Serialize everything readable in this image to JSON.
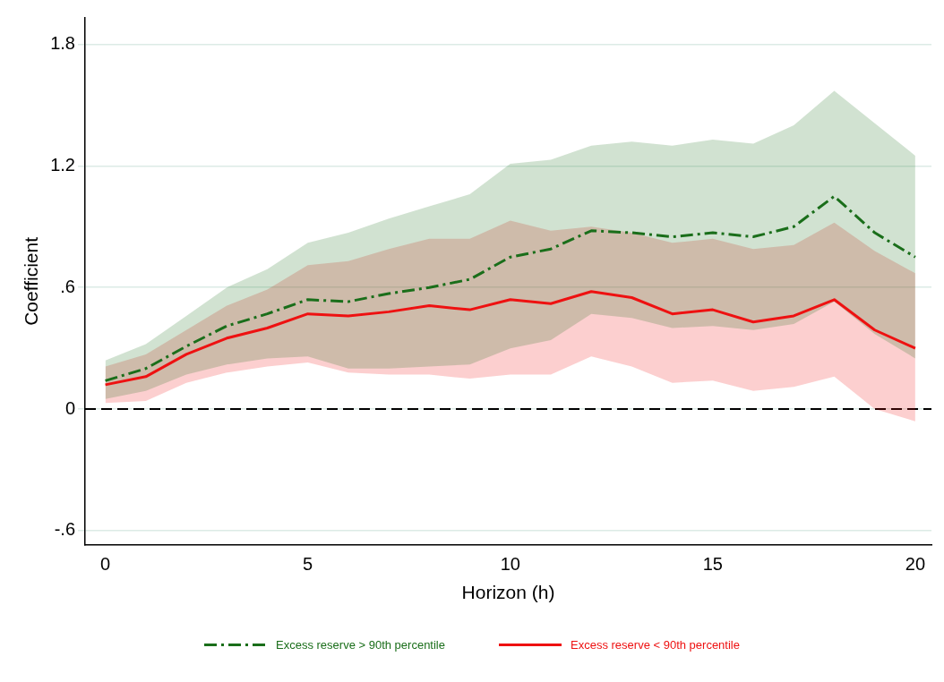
{
  "chart_data": {
    "type": "line",
    "xlabel": "Horizon (h)",
    "ylabel": "Coefficient",
    "x": [
      0,
      1,
      2,
      3,
      4,
      5,
      6,
      7,
      8,
      9,
      10,
      11,
      12,
      13,
      14,
      15,
      16,
      17,
      18,
      19,
      20
    ],
    "series": [
      {
        "name": "Excess reserve > 90th percentile",
        "color": "#1a6e1a",
        "line_style": "dashed",
        "values": [
          0.14,
          0.2,
          0.31,
          0.41,
          0.47,
          0.54,
          0.53,
          0.57,
          0.6,
          0.64,
          0.75,
          0.79,
          0.88,
          0.87,
          0.85,
          0.87,
          0.85,
          0.9,
          1.05,
          0.87,
          0.75
        ],
        "upper": [
          0.24,
          0.32,
          0.46,
          0.6,
          0.69,
          0.82,
          0.87,
          0.94,
          1.0,
          1.06,
          1.21,
          1.23,
          1.3,
          1.32,
          1.3,
          1.33,
          1.31,
          1.4,
          1.57,
          1.41,
          1.25
        ],
        "lower": [
          0.05,
          0.09,
          0.17,
          0.22,
          0.25,
          0.26,
          0.2,
          0.2,
          0.21,
          0.22,
          0.3,
          0.34,
          0.47,
          0.45,
          0.4,
          0.41,
          0.39,
          0.42,
          0.53,
          0.37,
          0.25
        ]
      },
      {
        "name": "Excess reserve < 90th percentile",
        "color": "#ee1111",
        "line_style": "solid",
        "values": [
          0.12,
          0.16,
          0.27,
          0.35,
          0.4,
          0.47,
          0.46,
          0.48,
          0.51,
          0.49,
          0.54,
          0.52,
          0.58,
          0.55,
          0.47,
          0.49,
          0.43,
          0.46,
          0.54,
          0.39,
          0.3
        ],
        "upper": [
          0.21,
          0.27,
          0.39,
          0.51,
          0.59,
          0.71,
          0.73,
          0.79,
          0.84,
          0.84,
          0.93,
          0.88,
          0.9,
          0.87,
          0.82,
          0.84,
          0.79,
          0.81,
          0.92,
          0.78,
          0.67
        ],
        "lower": [
          0.03,
          0.04,
          0.13,
          0.18,
          0.21,
          0.23,
          0.18,
          0.17,
          0.17,
          0.15,
          0.17,
          0.17,
          0.26,
          0.21,
          0.13,
          0.14,
          0.09,
          0.11,
          0.16,
          0.0,
          -0.06
        ]
      }
    ],
    "xlim": [
      -0.5,
      20.4
    ],
    "xticks": [
      0,
      5,
      10,
      15,
      20
    ],
    "ylim": [
      -0.67,
      1.93
    ],
    "yticks": [
      {
        "value": -0.6,
        "label": "-.6"
      },
      0,
      {
        "value": 0.6,
        "label": ".6"
      },
      1.2,
      1.8
    ],
    "ref_lines": [
      {
        "axis": "y",
        "value": 0,
        "color": "#000000",
        "line_style": "dashed"
      }
    ],
    "grid": "y",
    "legend": "bottom"
  }
}
